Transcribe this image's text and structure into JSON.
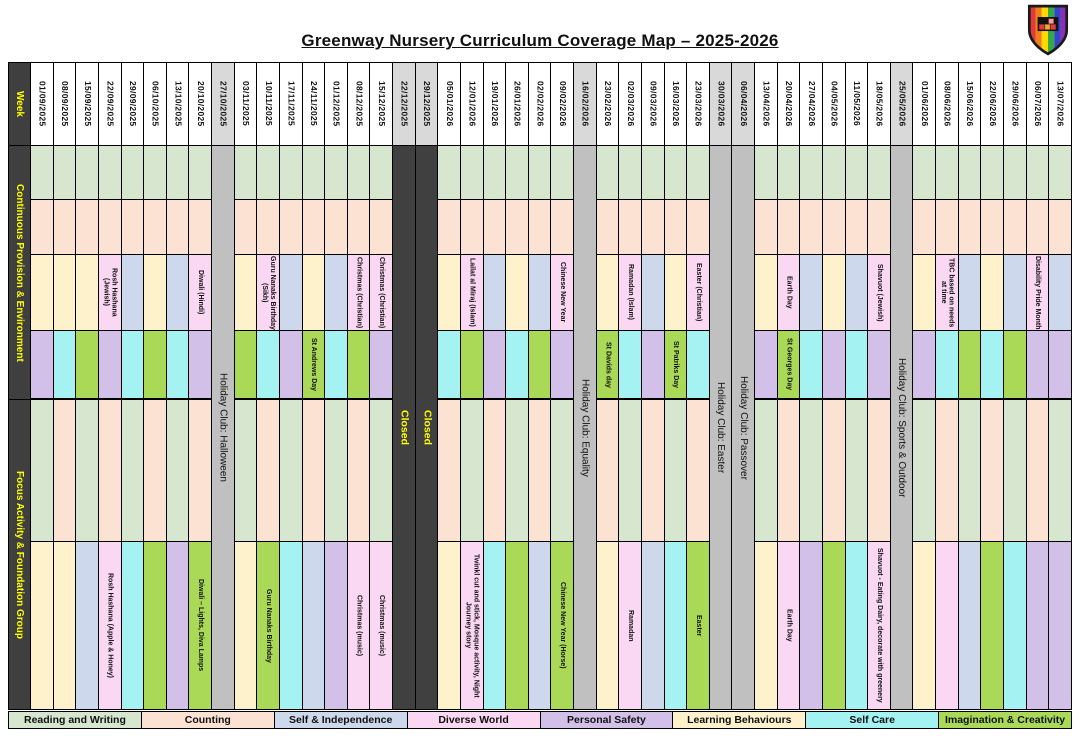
{
  "title": "Greenway Nursery Curriculum Coverage Map – 2025-2026",
  "row_labels": {
    "week": "Week",
    "continuous": "Continuous Provision & Environment",
    "focus": "Focus Activity & Foundation Group"
  },
  "colors": {
    "reading": "#d6e6cf",
    "counting": "#fbe2d3",
    "independence": "#cdd8ed",
    "diverse": "#fad7f3",
    "safety": "#d2c0e8",
    "learning": "#fdf2cc",
    "selfcare": "#a5f2f2",
    "imagination": "#a9d957",
    "holiday_bg": "#c0c0c0",
    "closed_bg": "#404040",
    "closed_text": "#ffff00",
    "special_header_bg": "#d9d9d9",
    "sidebar_bg": "#3f3f3f",
    "sidebar_text": "#ffff00",
    "grid_line": "#000000"
  },
  "legend": [
    {
      "key": "reading",
      "label": "Reading and Writing"
    },
    {
      "key": "counting",
      "label": "Counting"
    },
    {
      "key": "independence",
      "label": "Self & Independence"
    },
    {
      "key": "diverse",
      "label": "Diverse World"
    },
    {
      "key": "safety",
      "label": "Personal Safety"
    },
    {
      "key": "learning",
      "label": "Learning Behaviours"
    },
    {
      "key": "selfcare",
      "label": "Self Care"
    },
    {
      "key": "imagination",
      "label": "Imagination & Creativity"
    }
  ],
  "columns": [
    {
      "date": "01/09/2025",
      "type": "week",
      "cells": [
        {
          "cat": "reading"
        },
        {
          "cat": "counting"
        },
        {
          "cat": "learning"
        },
        {
          "cat": "safety"
        },
        {
          "cat": "reading"
        },
        {
          "cat": "learning"
        }
      ]
    },
    {
      "date": "08/09/2025",
      "type": "week",
      "cells": [
        {
          "cat": "reading"
        },
        {
          "cat": "counting"
        },
        {
          "cat": "learning"
        },
        {
          "cat": "selfcare"
        },
        {
          "cat": "counting"
        },
        {
          "cat": "learning"
        }
      ]
    },
    {
      "date": "15/09/2025",
      "type": "week",
      "cells": [
        {
          "cat": "reading"
        },
        {
          "cat": "counting"
        },
        {
          "cat": "learning"
        },
        {
          "cat": "imagination"
        },
        {
          "cat": "reading"
        },
        {
          "cat": "independence"
        }
      ]
    },
    {
      "date": "22/09/2025",
      "type": "week",
      "cells": [
        {
          "cat": "reading"
        },
        {
          "cat": "counting"
        },
        {
          "cat": "diverse",
          "label": "Rosh Hashana (Jewish)"
        },
        {
          "cat": "safety"
        },
        {
          "cat": "counting"
        },
        {
          "cat": "diverse",
          "label": "Rosh Hashana (Apple & Honey)"
        }
      ]
    },
    {
      "date": "29/09/2025",
      "type": "week",
      "cells": [
        {
          "cat": "reading"
        },
        {
          "cat": "counting"
        },
        {
          "cat": "independence"
        },
        {
          "cat": "selfcare"
        },
        {
          "cat": "reading"
        },
        {
          "cat": "selfcare"
        }
      ]
    },
    {
      "date": "06/10/2025",
      "type": "week",
      "cells": [
        {
          "cat": "reading"
        },
        {
          "cat": "counting"
        },
        {
          "cat": "learning"
        },
        {
          "cat": "imagination"
        },
        {
          "cat": "counting"
        },
        {
          "cat": "imagination"
        }
      ]
    },
    {
      "date": "13/10/2025",
      "type": "week",
      "cells": [
        {
          "cat": "reading"
        },
        {
          "cat": "counting"
        },
        {
          "cat": "independence"
        },
        {
          "cat": "selfcare"
        },
        {
          "cat": "reading"
        },
        {
          "cat": "safety"
        }
      ]
    },
    {
      "date": "20/10/2025",
      "type": "week",
      "cells": [
        {
          "cat": "reading"
        },
        {
          "cat": "counting"
        },
        {
          "cat": "diverse",
          "label": "Diwali (Hindi)"
        },
        {
          "cat": "safety"
        },
        {
          "cat": "counting"
        },
        {
          "cat": "imagination",
          "label": "Diwali – Lights, Diva Lamps"
        }
      ]
    },
    {
      "date": "27/10/2025",
      "type": "holiday",
      "label": "Holiday Club: Halloween"
    },
    {
      "date": "03/11/2025",
      "type": "week",
      "cells": [
        {
          "cat": "reading"
        },
        {
          "cat": "counting"
        },
        {
          "cat": "learning"
        },
        {
          "cat": "imagination"
        },
        {
          "cat": "reading"
        },
        {
          "cat": "learning"
        }
      ]
    },
    {
      "date": "10/11/2025",
      "type": "week",
      "cells": [
        {
          "cat": "reading"
        },
        {
          "cat": "counting"
        },
        {
          "cat": "diverse",
          "label": "Guru Nanaks Birthday (Sikh)"
        },
        {
          "cat": "selfcare"
        },
        {
          "cat": "counting"
        },
        {
          "cat": "imagination",
          "label": "Guru Nanaks Birthday"
        }
      ]
    },
    {
      "date": "17/11/2025",
      "type": "week",
      "cells": [
        {
          "cat": "reading"
        },
        {
          "cat": "counting"
        },
        {
          "cat": "independence"
        },
        {
          "cat": "safety"
        },
        {
          "cat": "reading"
        },
        {
          "cat": "selfcare"
        }
      ]
    },
    {
      "date": "24/11/2025",
      "type": "week",
      "cells": [
        {
          "cat": "reading"
        },
        {
          "cat": "counting"
        },
        {
          "cat": "learning"
        },
        {
          "cat": "imagination",
          "label": "St Andrews Day"
        },
        {
          "cat": "counting"
        },
        {
          "cat": "independence"
        }
      ]
    },
    {
      "date": "01/12/2025",
      "type": "week",
      "cells": [
        {
          "cat": "reading"
        },
        {
          "cat": "counting"
        },
        {
          "cat": "independence"
        },
        {
          "cat": "selfcare"
        },
        {
          "cat": "reading"
        },
        {
          "cat": "safety"
        }
      ]
    },
    {
      "date": "08/12/2025",
      "type": "week",
      "cells": [
        {
          "cat": "reading"
        },
        {
          "cat": "counting"
        },
        {
          "cat": "diverse",
          "label": "Christmas (Christian)"
        },
        {
          "cat": "imagination"
        },
        {
          "cat": "counting"
        },
        {
          "cat": "diverse",
          "label": "Christmas (music)"
        }
      ]
    },
    {
      "date": "15/12/2025",
      "type": "week",
      "cells": [
        {
          "cat": "reading"
        },
        {
          "cat": "counting"
        },
        {
          "cat": "diverse",
          "label": "Christmas (Christian)"
        },
        {
          "cat": "safety"
        },
        {
          "cat": "reading"
        },
        {
          "cat": "diverse",
          "label": "Christmas (music)"
        }
      ]
    },
    {
      "date": "22/12/2025",
      "type": "closed",
      "label": "Closed"
    },
    {
      "date": "29/12/2025",
      "type": "closed",
      "label": "Closed"
    },
    {
      "date": "05/01/2026",
      "type": "week",
      "cells": [
        {
          "cat": "reading"
        },
        {
          "cat": "counting"
        },
        {
          "cat": "learning"
        },
        {
          "cat": "selfcare"
        },
        {
          "cat": "counting"
        },
        {
          "cat": "learning"
        }
      ]
    },
    {
      "date": "12/01/2026",
      "type": "week",
      "cells": [
        {
          "cat": "reading"
        },
        {
          "cat": "counting"
        },
        {
          "cat": "diverse",
          "label": "Lailat al Miraj (Islam)"
        },
        {
          "cat": "imagination"
        },
        {
          "cat": "reading"
        },
        {
          "cat": "diverse",
          "label": "Twinkl cut and stick, Mosque activity, Night Journey story"
        }
      ]
    },
    {
      "date": "19/01/2026",
      "type": "week",
      "cells": [
        {
          "cat": "reading"
        },
        {
          "cat": "counting"
        },
        {
          "cat": "independence"
        },
        {
          "cat": "safety"
        },
        {
          "cat": "counting"
        },
        {
          "cat": "selfcare"
        }
      ]
    },
    {
      "date": "26/01/2026",
      "type": "week",
      "cells": [
        {
          "cat": "reading"
        },
        {
          "cat": "counting"
        },
        {
          "cat": "learning"
        },
        {
          "cat": "selfcare"
        },
        {
          "cat": "reading"
        },
        {
          "cat": "imagination"
        }
      ]
    },
    {
      "date": "02/02/2026",
      "type": "week",
      "cells": [
        {
          "cat": "reading"
        },
        {
          "cat": "counting"
        },
        {
          "cat": "independence"
        },
        {
          "cat": "imagination"
        },
        {
          "cat": "counting"
        },
        {
          "cat": "independence"
        }
      ]
    },
    {
      "date": "09/02/2026",
      "type": "week",
      "cells": [
        {
          "cat": "reading"
        },
        {
          "cat": "counting"
        },
        {
          "cat": "diverse",
          "label": "Chinese New Year"
        },
        {
          "cat": "safety"
        },
        {
          "cat": "reading"
        },
        {
          "cat": "imagination",
          "label": "Chinese New Year (Horse)"
        }
      ]
    },
    {
      "date": "16/02/2026",
      "type": "holiday",
      "label": "Holiday Club: Equality"
    },
    {
      "date": "23/02/2026",
      "type": "week",
      "cells": [
        {
          "cat": "reading"
        },
        {
          "cat": "counting"
        },
        {
          "cat": "learning"
        },
        {
          "cat": "imagination",
          "label": "St Davids day"
        },
        {
          "cat": "counting"
        },
        {
          "cat": "learning"
        }
      ]
    },
    {
      "date": "02/03/2026",
      "type": "week",
      "cells": [
        {
          "cat": "reading"
        },
        {
          "cat": "counting"
        },
        {
          "cat": "diverse",
          "label": "Ramadan (Islam)"
        },
        {
          "cat": "selfcare"
        },
        {
          "cat": "reading"
        },
        {
          "cat": "diverse",
          "label": "Ramadan"
        }
      ]
    },
    {
      "date": "09/03/2026",
      "type": "week",
      "cells": [
        {
          "cat": "reading"
        },
        {
          "cat": "counting"
        },
        {
          "cat": "independence"
        },
        {
          "cat": "safety"
        },
        {
          "cat": "counting"
        },
        {
          "cat": "independence"
        }
      ]
    },
    {
      "date": "16/03/2026",
      "type": "week",
      "cells": [
        {
          "cat": "reading"
        },
        {
          "cat": "counting"
        },
        {
          "cat": "learning"
        },
        {
          "cat": "imagination",
          "label": "St Patriks Day"
        },
        {
          "cat": "reading"
        },
        {
          "cat": "selfcare"
        }
      ]
    },
    {
      "date": "23/03/2026",
      "type": "week",
      "cells": [
        {
          "cat": "reading"
        },
        {
          "cat": "counting"
        },
        {
          "cat": "diverse",
          "label": "Easter (Christian)"
        },
        {
          "cat": "selfcare"
        },
        {
          "cat": "counting"
        },
        {
          "cat": "imagination",
          "label": "Easter"
        }
      ]
    },
    {
      "date": "30/03/2026",
      "type": "holiday",
      "label": "Holiday Club: Easter"
    },
    {
      "date": "06/04/2026",
      "type": "holiday",
      "label": "Holiday Club: Passover"
    },
    {
      "date": "13/04/2026",
      "type": "week",
      "cells": [
        {
          "cat": "reading"
        },
        {
          "cat": "counting"
        },
        {
          "cat": "learning"
        },
        {
          "cat": "safety"
        },
        {
          "cat": "reading"
        },
        {
          "cat": "learning"
        }
      ]
    },
    {
      "date": "20/04/2026",
      "type": "week",
      "cells": [
        {
          "cat": "reading"
        },
        {
          "cat": "counting"
        },
        {
          "cat": "diverse",
          "label": "Earth Day"
        },
        {
          "cat": "imagination",
          "label": "St Georges Day"
        },
        {
          "cat": "counting"
        },
        {
          "cat": "diverse",
          "label": "Earth Day"
        }
      ]
    },
    {
      "date": "27/04/2026",
      "type": "week",
      "cells": [
        {
          "cat": "reading"
        },
        {
          "cat": "counting"
        },
        {
          "cat": "independence"
        },
        {
          "cat": "selfcare"
        },
        {
          "cat": "reading"
        },
        {
          "cat": "safety"
        }
      ]
    },
    {
      "date": "04/05/2026",
      "type": "week",
      "cells": [
        {
          "cat": "reading"
        },
        {
          "cat": "counting"
        },
        {
          "cat": "learning"
        },
        {
          "cat": "safety"
        },
        {
          "cat": "counting"
        },
        {
          "cat": "imagination"
        }
      ]
    },
    {
      "date": "11/05/2026",
      "type": "week",
      "cells": [
        {
          "cat": "reading"
        },
        {
          "cat": "counting"
        },
        {
          "cat": "independence"
        },
        {
          "cat": "selfcare"
        },
        {
          "cat": "reading"
        },
        {
          "cat": "selfcare"
        }
      ]
    },
    {
      "date": "18/05/2026",
      "type": "week",
      "cells": [
        {
          "cat": "reading"
        },
        {
          "cat": "counting"
        },
        {
          "cat": "diverse",
          "label": "Shavuot (Jewish)"
        },
        {
          "cat": "safety"
        },
        {
          "cat": "counting"
        },
        {
          "cat": "diverse",
          "label": "Shavuot - Eating Dairy, decorate with greenery"
        }
      ]
    },
    {
      "date": "25/05/2026",
      "type": "holiday",
      "label": "Holiday Club: Sports & Outdoor"
    },
    {
      "date": "01/06/2026",
      "type": "week",
      "cells": [
        {
          "cat": "reading"
        },
        {
          "cat": "counting"
        },
        {
          "cat": "learning"
        },
        {
          "cat": "safety"
        },
        {
          "cat": "reading"
        },
        {
          "cat": "learning"
        }
      ]
    },
    {
      "date": "08/06/2026",
      "type": "week",
      "cells": [
        {
          "cat": "reading"
        },
        {
          "cat": "counting"
        },
        {
          "cat": "diverse",
          "label": "TBC based on needs at time"
        },
        {
          "cat": "selfcare"
        },
        {
          "cat": "counting"
        },
        {
          "cat": "diverse"
        }
      ]
    },
    {
      "date": "15/06/2026",
      "type": "week",
      "cells": [
        {
          "cat": "reading"
        },
        {
          "cat": "counting"
        },
        {
          "cat": "independence"
        },
        {
          "cat": "imagination"
        },
        {
          "cat": "reading"
        },
        {
          "cat": "independence"
        }
      ]
    },
    {
      "date": "22/06/2026",
      "type": "week",
      "cells": [
        {
          "cat": "reading"
        },
        {
          "cat": "counting"
        },
        {
          "cat": "learning"
        },
        {
          "cat": "selfcare"
        },
        {
          "cat": "counting"
        },
        {
          "cat": "imagination"
        }
      ]
    },
    {
      "date": "29/06/2026",
      "type": "week",
      "cells": [
        {
          "cat": "reading"
        },
        {
          "cat": "counting"
        },
        {
          "cat": "independence"
        },
        {
          "cat": "imagination"
        },
        {
          "cat": "reading"
        },
        {
          "cat": "selfcare"
        }
      ]
    },
    {
      "date": "06/07/2026",
      "type": "week",
      "cells": [
        {
          "cat": "reading"
        },
        {
          "cat": "counting"
        },
        {
          "cat": "diverse",
          "label": "Disability Pride Month"
        },
        {
          "cat": "safety"
        },
        {
          "cat": "counting"
        },
        {
          "cat": "safety"
        }
      ]
    },
    {
      "date": "13/07/2026",
      "type": "week",
      "cells": [
        {
          "cat": "reading"
        },
        {
          "cat": "counting"
        },
        {
          "cat": "independence"
        },
        {
          "cat": "safety"
        },
        {
          "cat": "reading"
        },
        {
          "cat": "safety"
        }
      ]
    }
  ]
}
